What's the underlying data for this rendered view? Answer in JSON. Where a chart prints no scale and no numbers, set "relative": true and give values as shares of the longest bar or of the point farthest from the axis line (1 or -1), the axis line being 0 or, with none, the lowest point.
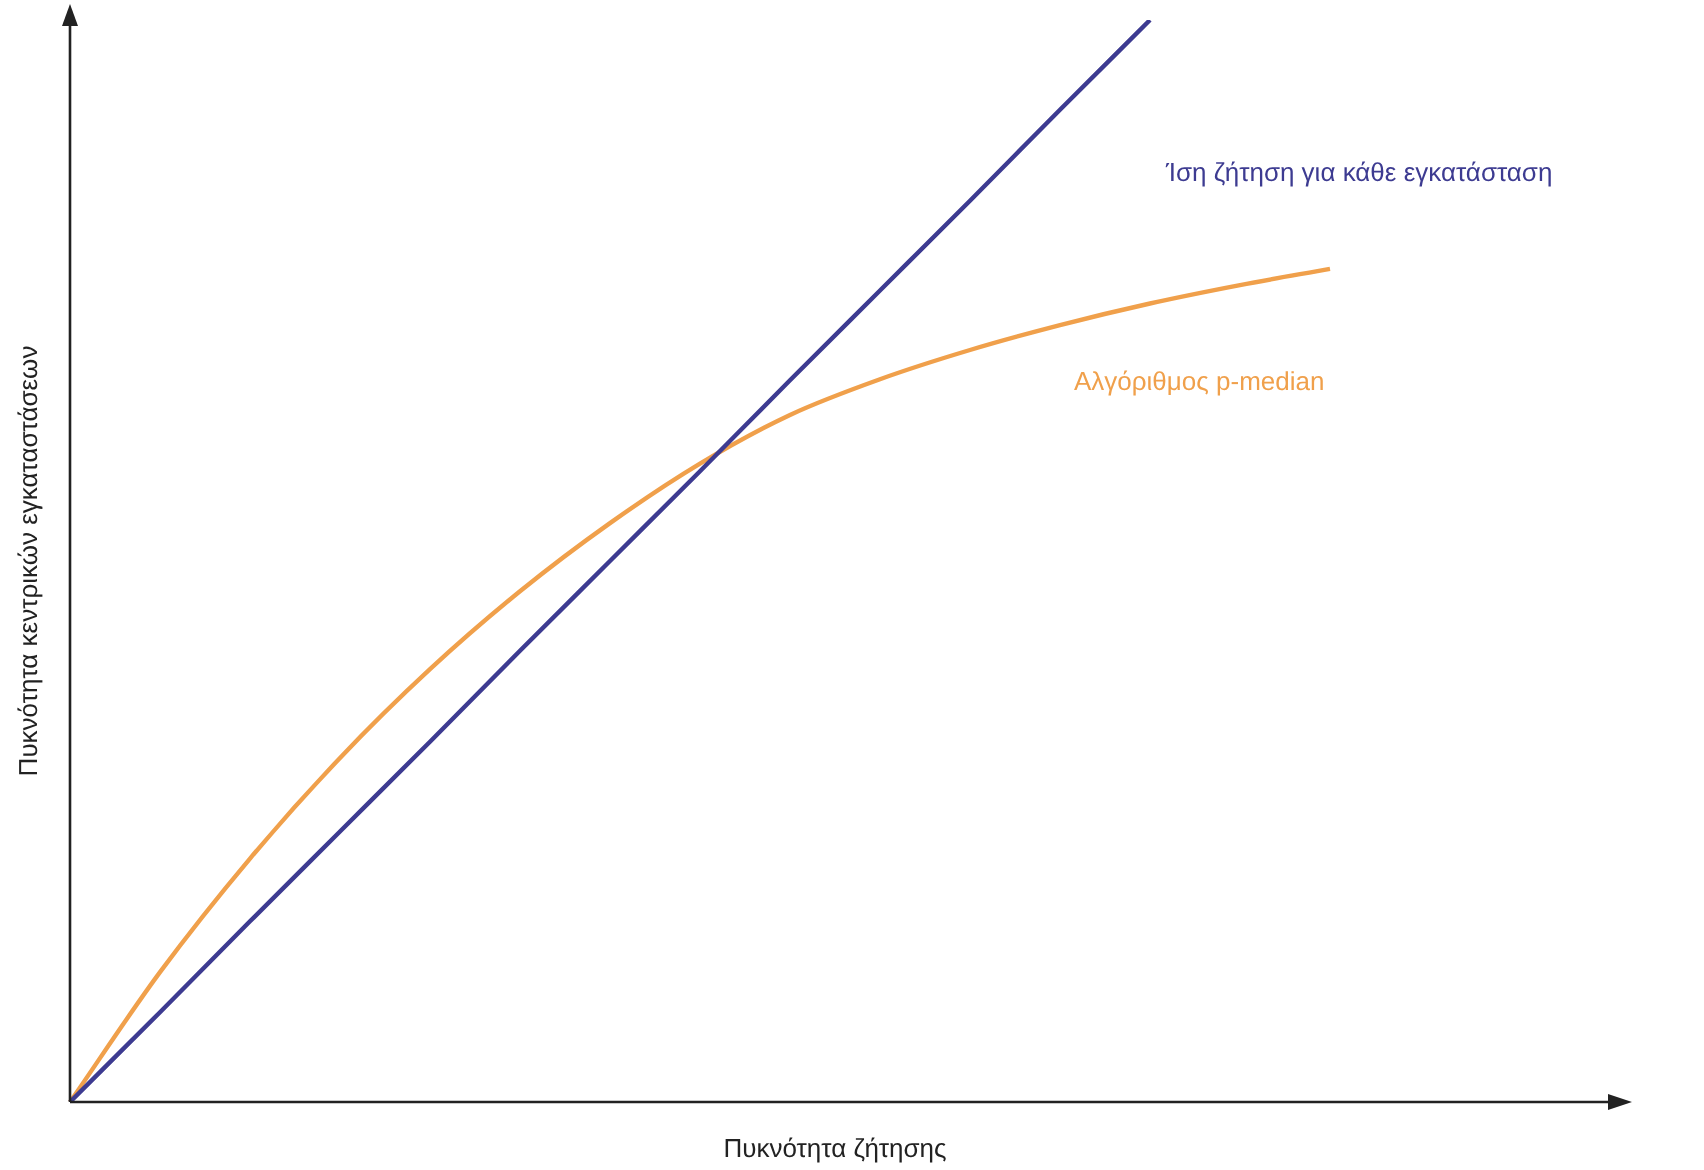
{
  "chart_data": {
    "type": "line",
    "relative": true,
    "xlabel": "Πυκνότητα ζήτησης",
    "ylabel": "Πυκνότητα κεντρικών εγκαταστάσεων",
    "categories": [
      null,
      null,
      null,
      null,
      null,
      null,
      null,
      null,
      null,
      null,
      null,
      null,
      null,
      null,
      null,
      null,
      null,
      null
    ],
    "series": [
      {
        "name": "Ίση ζήτηση για κάθε εγκατάσταση",
        "color": "#3d3b91",
        "values": [
          0,
          0.083,
          0.167,
          0.25,
          0.333,
          0.417,
          0.5,
          0.583,
          0.667,
          0.75,
          0.833,
          0.917,
          1,
          null,
          null,
          null,
          null,
          null
        ]
      },
      {
        "name": "Αλγόριθμος p-median",
        "color": "#f0a04b",
        "values": [
          0,
          0.12,
          0.225,
          0.318,
          0.4,
          0.472,
          0.535,
          0.59,
          0.635,
          0.668,
          0.695,
          0.718,
          0.738,
          0.755,
          0.77,
          null,
          null,
          null
        ]
      }
    ],
    "legend": false,
    "grid": false,
    "marker": "none",
    "line_style": "solid"
  }
}
